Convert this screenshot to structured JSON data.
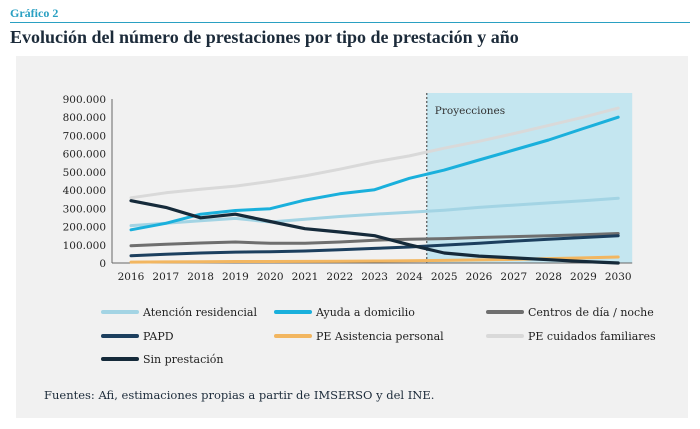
{
  "header": {
    "figure_label": "Gráfico 2",
    "title": "Evolución del número de prestaciones por tipo de prestación y año"
  },
  "source": "Fuentes: Afi, estimaciones propias a partir de IMSERSO y del INE.",
  "chart_data": {
    "type": "line",
    "title": "Evolución del número de prestaciones por tipo de prestación y año",
    "xlabel": "",
    "ylabel": "",
    "x": [
      "2016",
      "2017",
      "2018",
      "2019",
      "2020",
      "2021",
      "2022",
      "2023",
      "2024",
      "2025",
      "2026",
      "2027",
      "2028",
      "2029",
      "2030"
    ],
    "yticks": [
      "0",
      "100.000",
      "200.000",
      "300.000",
      "400.000",
      "500.000",
      "600.000",
      "700.000",
      "800.000",
      "900.000"
    ],
    "ylim": [
      0,
      900000
    ],
    "grid": false,
    "legend_position": "bottom",
    "projection": {
      "label": "Proyecciones",
      "from": "2024.5",
      "to": "2030"
    },
    "series": [
      {
        "name": "Atención residencial",
        "color": "#a3d4e4",
        "values": [
          205000,
          218000,
          232000,
          245000,
          225000,
          240000,
          255000,
          268000,
          278000,
          290000,
          305000,
          318000,
          330000,
          342000,
          355000
        ]
      },
      {
        "name": "Ayuda a domicilio",
        "color": "#1ab0dc",
        "values": [
          182000,
          218000,
          268000,
          288000,
          298000,
          345000,
          380000,
          402000,
          465000,
          510000,
          565000,
          620000,
          675000,
          738000,
          800000
        ]
      },
      {
        "name": "Centros de día / noche",
        "color": "#6f6f6f",
        "values": [
          95000,
          103000,
          110000,
          115000,
          108000,
          108000,
          115000,
          125000,
          130000,
          134000,
          140000,
          145000,
          150000,
          155000,
          162000
        ]
      },
      {
        "name": "PAPD",
        "color": "#1c3f5e",
        "values": [
          40000,
          48000,
          55000,
          60000,
          62000,
          66000,
          73000,
          80000,
          88000,
          98000,
          108000,
          120000,
          130000,
          140000,
          150000
        ]
      },
      {
        "name": "PE Asistencia personal",
        "color": "#f2b660",
        "values": [
          5000,
          6000,
          7000,
          8000,
          8000,
          9000,
          10000,
          11000,
          12000,
          14000,
          17000,
          20000,
          24000,
          28000,
          33000
        ]
      },
      {
        "name": "PE cuidados familiares",
        "color": "#d9d9d9",
        "values": [
          358000,
          385000,
          405000,
          422000,
          448000,
          478000,
          515000,
          555000,
          588000,
          630000,
          668000,
          710000,
          755000,
          800000,
          850000
        ]
      },
      {
        "name": "Sin prestación",
        "color": "#152a3a",
        "values": [
          342000,
          305000,
          248000,
          268000,
          228000,
          188000,
          170000,
          150000,
          100000,
          55000,
          38000,
          28000,
          18000,
          8000,
          0
        ]
      }
    ]
  }
}
